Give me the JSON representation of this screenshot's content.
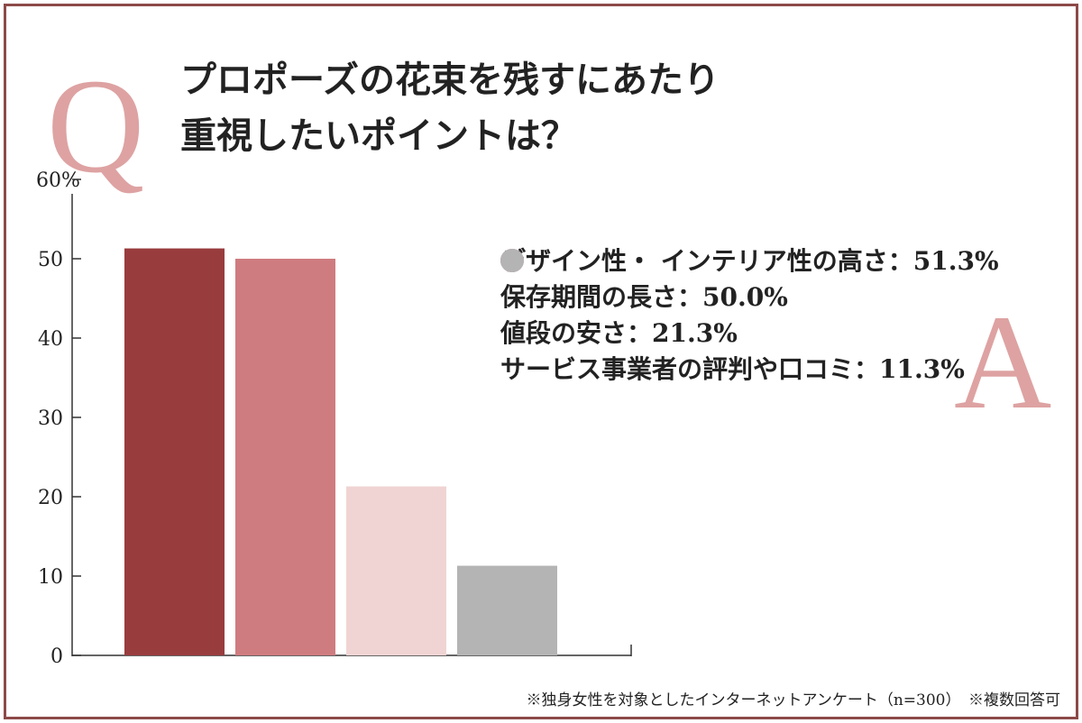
{
  "chart_data": {
    "type": "bar",
    "q_mark": "Q",
    "a_mark": "A",
    "title": "プロポーズの花束を残すにあたり\n重視したいポイントは？",
    "categories": [
      "デザイン性・\nインテリア性の高さ",
      "保存期間の長さ",
      "値段の安さ",
      "サービス事業者の評判や口コミ"
    ],
    "values": [
      51.3,
      50.0,
      21.3,
      11.3
    ],
    "value_labels": [
      "51.3%",
      "50.0%",
      "21.3%",
      "11.3%"
    ],
    "separator": "：",
    "colors": [
      "#993c3e",
      "#cf7c80",
      "#f0d4d3",
      "#b4b4b4"
    ],
    "ylim": [
      0,
      60
    ],
    "yticks": [
      0,
      10,
      20,
      30,
      40,
      50,
      {
        "value": 60,
        "label": "60%"
      }
    ],
    "legend": "right",
    "footnote": "※独身女性を対象としたインターネットアンケート（n=300）　※複数回答可"
  }
}
